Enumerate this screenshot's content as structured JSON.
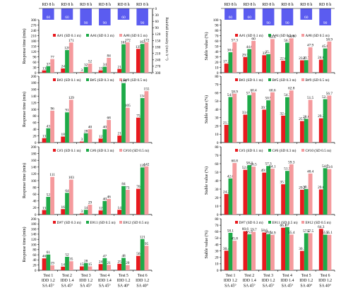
{
  "colors": {
    "red": "#e8191e",
    "green": "#1daa48",
    "pink": "#f59a9d",
    "rain": "#5b5cf0",
    "axis": "#000000"
  },
  "groups": [
    "Test 1\nIDD 1.2\nSA 45°",
    "Test 2\nIDD 1.4\nSA 45°",
    "Test 3\nIDD 1.2\nSA 45°",
    "Test 4\nIDD 1.4\nSA 45°",
    "Test 5\nIDD 1.2\nSA 40°",
    "Test 6\nIDD 1.2\nSA 40°"
  ],
  "rainfall": {
    "header_labels": [
      "RD 8 h",
      "RD 8 h",
      "RD 8 h",
      "RD 8 h",
      "RD 8 h",
      "RD 8 h"
    ],
    "intensities": [
      60,
      60,
      90,
      90,
      60,
      90
    ],
    "ylabel": "Rainfall intensity (mm h⁻¹)"
  },
  "chart_data": [
    {
      "type": "bar",
      "panel": "left-1",
      "ylabel": "Response time (min)",
      "ylim": [
        0,
        300
      ],
      "rain_ylim": [
        0,
        300
      ],
      "yticks": [
        0,
        30,
        60,
        90,
        120,
        150,
        180,
        210,
        240,
        270,
        300
      ],
      "rain_ticks": [
        0,
        30,
        60,
        90,
        120,
        150,
        180,
        210,
        240,
        270,
        300
      ],
      "series": [
        {
          "name": "A#1 (SD 0.1 m)",
          "values": [
            13,
            24,
            3,
            13,
            21,
            135
          ]
        },
        {
          "name": "A#4 (SD 0.3 m)",
          "values": [
            37,
            128,
            32,
            34,
            161,
            163
          ]
        },
        {
          "name": "A#8 (SD 0.5 m)",
          "values": [
            77,
            171,
            52,
            84,
            172,
            172
          ]
        }
      ]
    },
    {
      "type": "bar",
      "panel": "left-2",
      "ylabel": "Response time (min)",
      "ylim": [
        0,
        200
      ],
      "yticks": [
        0,
        20,
        40,
        60,
        80,
        100,
        120,
        140,
        160,
        180,
        200
      ],
      "series": [
        {
          "name": "B#2 (SD 0.1 m)",
          "values": [
            13,
            18,
            3,
            12,
            21,
            75
          ]
        },
        {
          "name": "B#5 (SD 0.3 m)",
          "values": [
            43,
            91,
            28,
            40,
            179,
            134
          ]
        },
        {
          "name": "B#9 (SD 0.5 m)",
          "values": [
            96,
            129,
            40,
            68,
            105,
            155
          ]
        }
      ]
    },
    {
      "type": "bar",
      "panel": "left-3",
      "ylabel": "Response time (min)",
      "ylim": [
        0,
        200
      ],
      "yticks": [
        0,
        20,
        40,
        60,
        80,
        100,
        120,
        140,
        160,
        180,
        200
      ],
      "series": [
        {
          "name": "C#3 (SD 0.1 m)",
          "values": [
            13,
            16,
            3,
            12,
            14,
            76
          ]
        },
        {
          "name": "C#6 (SD 0.3 m)",
          "values": [
            52,
            64,
            14,
            40,
            84,
            139
          ]
        },
        {
          "name": "C#10 (SD 0.5 m)",
          "values": [
            111,
            103,
            29,
            46,
            73,
            142
          ]
        }
      ]
    },
    {
      "type": "bar",
      "panel": "left-4",
      "ylabel": "Response time (min)",
      "ylim": [
        0,
        200
      ],
      "yticks": [
        0,
        20,
        40,
        60,
        80,
        100,
        120,
        140,
        160,
        180,
        200
      ],
      "series": [
        {
          "name": "D#7 (SD 0.3 m)",
          "values": [
            46,
            14,
            15,
            24,
            25,
            56
          ]
        },
        {
          "name": "E#11 (SD 0.5 m)",
          "values": [
            61,
            52,
            28,
            47,
            48,
            121
          ]
        },
        {
          "name": "E#12 (SD 0.5 m)",
          "values": [
            19,
            35,
            15,
            21,
            20,
            95
          ]
        }
      ]
    },
    {
      "type": "bar",
      "panel": "right-1",
      "ylabel": "Stable value (%)",
      "ylim": [
        0,
        100
      ],
      "yticks": [
        0,
        10,
        20,
        30,
        40,
        50,
        60,
        70,
        80,
        90,
        100
      ],
      "series": [
        {
          "name": "A#1 (SD 0.1 m)",
          "values": [
            17.2,
            29.5,
            33.0,
            22.6,
            23.4,
            24.6
          ]
        },
        {
          "name": "A#4 (SD 0.3 m)",
          "values": [
            38.6,
            44.6,
            35.1,
            56.7,
            23.7,
            45.8
          ]
        },
        {
          "name": "A#8 (SD 0.5 m)",
          "values": [
            57.3,
            60.0,
            63.5,
            64.9,
            47.9,
            58.9
          ]
        }
      ]
    },
    {
      "type": "bar",
      "panel": "right-2",
      "ylabel": "Stable value (%)",
      "ylim": [
        0,
        80
      ],
      "yticks": [
        0,
        10,
        20,
        30,
        40,
        50,
        60,
        70,
        80
      ],
      "series": [
        {
          "name": "B#2 (SD 0.1 m)",
          "values": [
            21.3,
            33.6,
            39.7,
            32.4,
            25.9,
            29.2
          ]
        },
        {
          "name": "B#5 (SD 0.3 m)",
          "values": [
            54.9,
            57.1,
            50.9,
            54.7,
            28.6,
            52.3
          ]
        },
        {
          "name": "B#9 (SD 0.5 m)",
          "values": [
            58.9,
            60.4,
            60.6,
            62.8,
            51.5,
            56.7
          ]
        }
      ]
    },
    {
      "type": "bar",
      "panel": "right-3",
      "ylabel": "Stable value (%)",
      "ylim": [
        0,
        80
      ],
      "yticks": [
        0,
        10,
        20,
        30,
        40,
        50,
        60,
        70,
        80
      ],
      "series": [
        {
          "name": "C#3 (SD 0.1 m)",
          "values": [
            24.2,
            52.8,
            49.5,
            35.7,
            29.2,
            29.6
          ]
        },
        {
          "name": "C#6 (SD 0.3 m)",
          "values": [
            42.6,
            58.3,
            57.3,
            51.5,
            30.1,
            54.7
          ]
        },
        {
          "name": "C#10 (SD 0.5 m)",
          "values": [
            60.8,
            56.5,
            54.1,
            59.3,
            48.4,
            53.6
          ]
        }
      ]
    },
    {
      "type": "bar",
      "panel": "right-4",
      "ylabel": "Stable value (%)",
      "ylim": [
        0,
        80
      ],
      "yticks": [
        0,
        10,
        20,
        30,
        40,
        50,
        60,
        70,
        80
      ],
      "series": [
        {
          "name": "D#7 (SD 0.3 m)",
          "values": [
            30.4,
            60.6,
            58.6,
            66.1,
            30.1,
            64.3
          ]
        },
        {
          "name": "E#11 (SD 0.5 m)",
          "values": [
            58.1,
            55.8,
            56.1,
            67.0,
            57.5,
            55.3
          ]
        },
        {
          "name": "E#12 (SD 0.5 m)",
          "values": [
            45.8,
            59.7,
            54.9,
            55.4,
            57.5,
            55.1
          ]
        }
      ]
    }
  ]
}
